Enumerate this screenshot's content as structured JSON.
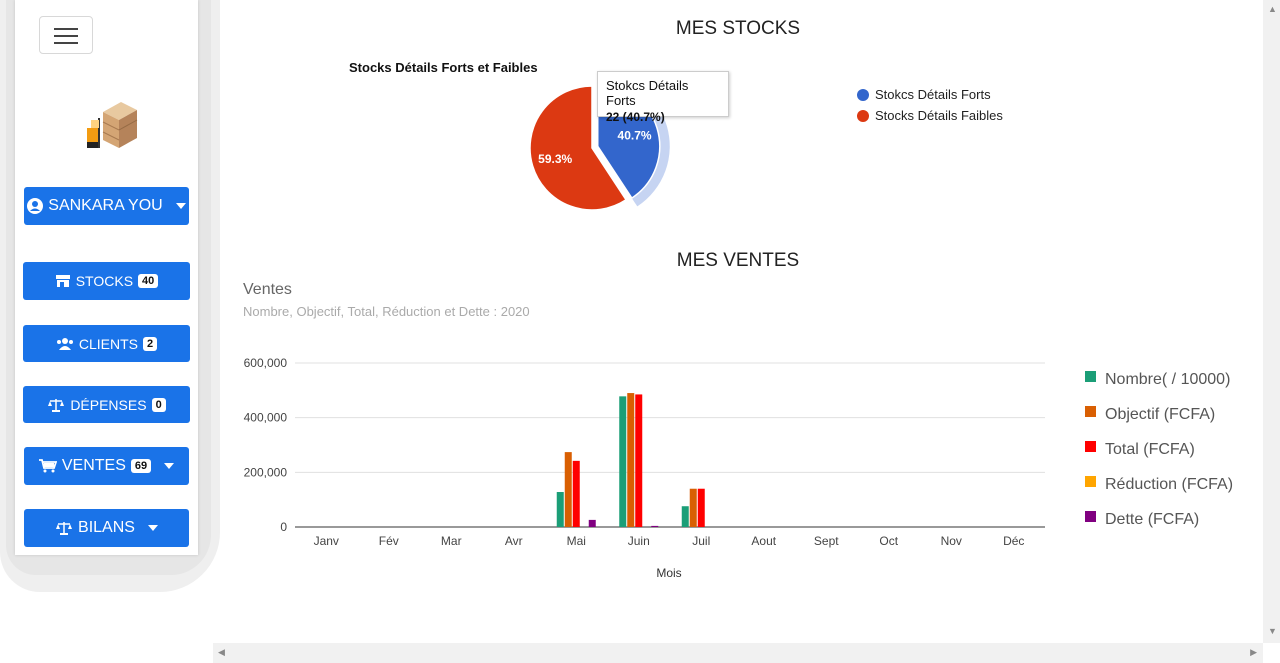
{
  "sidebar": {
    "user_label": "SANKARA YOU",
    "items": [
      {
        "label": "STOCKS",
        "badge": "40"
      },
      {
        "label": "CLIENTS",
        "badge": "2"
      },
      {
        "label": "DÉPENSES",
        "badge": "0"
      },
      {
        "label": "VENTES",
        "badge": "69"
      },
      {
        "label": "BILANS"
      }
    ]
  },
  "stocks": {
    "section_title": "MES STOCKS",
    "chart_title": "Stocks Détails Forts et Faibles",
    "tooltip": {
      "label": "Stokcs Détails Forts",
      "value": "22 (40.7%)"
    },
    "legend": [
      {
        "name": "Stokcs Détails Forts",
        "color": "#3366cc"
      },
      {
        "name": "Stocks Détails Faibles",
        "color": "#dc3912"
      }
    ]
  },
  "ventes": {
    "section_title": "MES VENTES",
    "chart_title": "Ventes",
    "chart_subtitle": "Nombre, Objectif, Total, Réduction et Dette : 2020"
  },
  "chart_data": [
    {
      "type": "pie",
      "title": "Stocks Détails Forts et Faibles",
      "labels": [
        "Stokcs Détails Forts",
        "Stocks Détails Faibles"
      ],
      "values": [
        22,
        32
      ],
      "percent_labels": [
        "40.7%",
        "59.3%"
      ],
      "colors": [
        "#3366cc",
        "#dc3912"
      ],
      "legend": "right"
    },
    {
      "type": "bar",
      "title": "Ventes",
      "subtitle": "Nombre, Objectif, Total, Réduction et Dette : 2020",
      "xlabel": "Mois",
      "ylabel": "",
      "categories": [
        "Janv",
        "Fév",
        "Mar",
        "Avr",
        "Mai",
        "Juin",
        "Juil",
        "Aout",
        "Sept",
        "Oct",
        "Nov",
        "Déc"
      ],
      "ylim": [
        0,
        600000
      ],
      "yticks": [
        "0",
        "200,000",
        "400,000",
        "600,000"
      ],
      "grid": true,
      "legend": "right",
      "series": [
        {
          "name": "Nombre( / 10000)",
          "color": "#1b9e77",
          "values": [
            0,
            0,
            0,
            0,
            128000,
            478000,
            76000,
            0,
            0,
            0,
            0,
            0
          ]
        },
        {
          "name": "Objectif (FCFA)",
          "color": "#d95f02",
          "values": [
            0,
            0,
            0,
            0,
            274000,
            490000,
            140000,
            0,
            0,
            0,
            0,
            0
          ]
        },
        {
          "name": "Total (FCFA)",
          "color": "#ff0000",
          "values": [
            0,
            0,
            0,
            0,
            242000,
            485000,
            140000,
            0,
            0,
            0,
            0,
            0
          ]
        },
        {
          "name": "Réduction (FCFA)",
          "color": "#ffa500",
          "values": [
            0,
            0,
            0,
            0,
            0,
            0,
            0,
            0,
            0,
            0,
            0,
            0
          ]
        },
        {
          "name": "Dette (FCFA)",
          "color": "#800080",
          "values": [
            0,
            0,
            0,
            0,
            26000,
            4000,
            0,
            0,
            0,
            0,
            0,
            0
          ]
        }
      ]
    }
  ]
}
